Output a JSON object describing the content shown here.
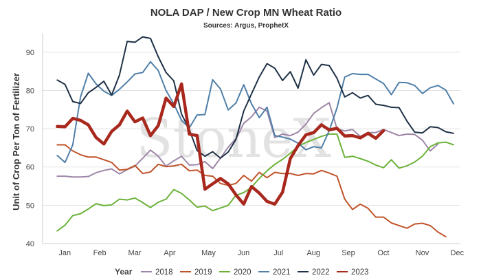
{
  "chart_data": {
    "type": "line",
    "title": "NOLA DAP / New Crop MN Wheat Ratio",
    "subtitle": "Sources: Argus, ProphetX",
    "ylabel": "Unit of Crop Per Ton of Fertilizer",
    "xlabel": "",
    "watermark": "StoneX",
    "ylim": [
      40,
      95
    ],
    "yticks": [
      40,
      50,
      60,
      70,
      80,
      90
    ],
    "xlim": [
      0,
      52
    ],
    "month_ticks": [
      {
        "label": "Jan",
        "x": 2.5
      },
      {
        "label": "Feb",
        "x": 7
      },
      {
        "label": "Mar",
        "x": 11.5
      },
      {
        "label": "Apr",
        "x": 16
      },
      {
        "label": "May",
        "x": 21
      },
      {
        "label": "Jun",
        "x": 25.5
      },
      {
        "label": "Jul",
        "x": 30
      },
      {
        "label": "Aug",
        "x": 34.5
      },
      {
        "label": "Sep",
        "x": 39
      },
      {
        "label": "Oct",
        "x": 43.5
      },
      {
        "label": "Nov",
        "x": 48.5
      },
      {
        "label": "Dec",
        "x": 53
      }
    ],
    "legend_title": "Year",
    "legend_position": "bottom",
    "grid": "horizontal",
    "series": [
      {
        "name": "2018",
        "color": "#9e86a8",
        "width": 2,
        "points": [
          [
            1,
            57.6
          ],
          [
            2,
            57.6
          ],
          [
            3,
            57.4
          ],
          [
            4,
            57.4
          ],
          [
            5,
            57.5
          ],
          [
            6,
            58.5
          ],
          [
            7,
            59.1
          ],
          [
            8,
            59.5
          ],
          [
            9,
            58.2
          ],
          [
            10,
            59.3
          ],
          [
            11,
            60.2
          ],
          [
            12,
            62.3
          ],
          [
            13,
            64.4
          ],
          [
            14,
            62.8
          ],
          [
            15,
            60.2
          ],
          [
            16,
            61.6
          ],
          [
            17,
            62.8
          ],
          [
            18,
            60.5
          ],
          [
            19,
            60.6
          ],
          [
            20,
            61.4
          ],
          [
            21,
            59.6
          ],
          [
            22,
            62.3
          ],
          [
            23,
            65.2
          ],
          [
            24,
            67.4
          ],
          [
            25,
            71.4
          ],
          [
            26,
            73.1
          ],
          [
            27,
            75.6
          ],
          [
            28,
            74.6
          ],
          [
            29,
            67.7
          ],
          [
            30,
            68.6
          ],
          [
            31,
            68.2
          ],
          [
            32,
            69.1
          ],
          [
            33,
            71.2
          ],
          [
            34,
            74
          ],
          [
            35,
            75.5
          ],
          [
            36,
            76.8
          ],
          [
            37,
            70
          ],
          [
            38,
            69.4
          ],
          [
            39,
            69.8
          ],
          [
            40,
            68
          ],
          [
            41,
            69
          ],
          [
            42,
            69
          ],
          [
            43,
            69.8
          ],
          [
            44,
            69
          ],
          [
            45,
            68.2
          ],
          [
            46,
            68.6
          ],
          [
            47,
            68.5
          ],
          [
            48,
            67
          ],
          [
            49,
            64.2
          ],
          [
            50,
            66
          ]
        ]
      },
      {
        "name": "2019",
        "color": "#c0542a",
        "width": 2,
        "points": [
          [
            1,
            65.8
          ],
          [
            2,
            65.8
          ],
          [
            3,
            64.2
          ],
          [
            4,
            63.2
          ],
          [
            5,
            62.6
          ],
          [
            6,
            62.6
          ],
          [
            7,
            61.9
          ],
          [
            8,
            61.2
          ],
          [
            9,
            59.2
          ],
          [
            10,
            59.4
          ],
          [
            11,
            60.4
          ],
          [
            12,
            58.3
          ],
          [
            13,
            58.7
          ],
          [
            14,
            60.7
          ],
          [
            15,
            60.1
          ],
          [
            16,
            60.3
          ],
          [
            17,
            60.7
          ],
          [
            18,
            59
          ],
          [
            19,
            59.2
          ],
          [
            20,
            57.8
          ],
          [
            21,
            57.6
          ],
          [
            22,
            55.7
          ],
          [
            23,
            55.2
          ],
          [
            24,
            55.7
          ],
          [
            25,
            57.8
          ],
          [
            26,
            56.3
          ],
          [
            27,
            58.6
          ],
          [
            28,
            57.2
          ],
          [
            29,
            58.6
          ],
          [
            30,
            58.3
          ],
          [
            31,
            58.3
          ],
          [
            32,
            57.8
          ],
          [
            33,
            58.3
          ],
          [
            34,
            58.2
          ],
          [
            35,
            59.1
          ],
          [
            36,
            58.4
          ],
          [
            37,
            57.6
          ],
          [
            38,
            51.6
          ],
          [
            39,
            48.9
          ],
          [
            40,
            50.3
          ],
          [
            41,
            49.2
          ],
          [
            42,
            46.9
          ],
          [
            43,
            46.9
          ],
          [
            44,
            45.4
          ],
          [
            45,
            44.7
          ],
          [
            46,
            44
          ],
          [
            47,
            45.1
          ],
          [
            48,
            45.3
          ],
          [
            49,
            44.7
          ],
          [
            50,
            43
          ],
          [
            51,
            41.8
          ]
        ]
      },
      {
        "name": "2020",
        "color": "#6cb23a",
        "width": 2,
        "points": [
          [
            1,
            43.3
          ],
          [
            2,
            44.8
          ],
          [
            3,
            47.3
          ],
          [
            4,
            47.8
          ],
          [
            5,
            49
          ],
          [
            6,
            50.4
          ],
          [
            7,
            49.9
          ],
          [
            8,
            50.1
          ],
          [
            9,
            51.6
          ],
          [
            10,
            51.4
          ],
          [
            11,
            51.9
          ],
          [
            12,
            50.7
          ],
          [
            13,
            49.4
          ],
          [
            14,
            50.8
          ],
          [
            15,
            51.6
          ],
          [
            16,
            54.1
          ],
          [
            17,
            53.1
          ],
          [
            18,
            51.4
          ],
          [
            19,
            49.5
          ],
          [
            20,
            49.8
          ],
          [
            21,
            48.6
          ],
          [
            22,
            49.3
          ],
          [
            23,
            50
          ],
          [
            24,
            52.6
          ],
          [
            25,
            53.3
          ],
          [
            26,
            54.7
          ],
          [
            27,
            57
          ],
          [
            28,
            59
          ],
          [
            29,
            60.7
          ],
          [
            30,
            62
          ],
          [
            31,
            63.6
          ],
          [
            32,
            65.4
          ],
          [
            33,
            66.4
          ],
          [
            34,
            67.2
          ],
          [
            35,
            68
          ],
          [
            36,
            68.6
          ],
          [
            37,
            68.6
          ],
          [
            38,
            62.5
          ],
          [
            39,
            62.8
          ],
          [
            40,
            62.2
          ],
          [
            41,
            61.5
          ],
          [
            42,
            60.5
          ],
          [
            43,
            59.8
          ],
          [
            44,
            61.9
          ],
          [
            45,
            59.7
          ],
          [
            46,
            60.3
          ],
          [
            47,
            61.3
          ],
          [
            48,
            62.8
          ],
          [
            49,
            65.3
          ],
          [
            50,
            66.3
          ],
          [
            51,
            66.5
          ],
          [
            52,
            65.8
          ]
        ]
      },
      {
        "name": "2021",
        "color": "#4f7fa8",
        "width": 2,
        "points": [
          [
            1,
            63
          ],
          [
            2,
            61.2
          ],
          [
            3,
            65.8
          ],
          [
            4,
            78.3
          ],
          [
            5,
            84.5
          ],
          [
            6,
            81.7
          ],
          [
            7,
            79.8
          ],
          [
            8,
            78.7
          ],
          [
            9,
            80.3
          ],
          [
            10,
            82.2
          ],
          [
            11,
            84.3
          ],
          [
            12,
            84.7
          ],
          [
            13,
            87.5
          ],
          [
            14,
            85.2
          ],
          [
            15,
            80
          ],
          [
            16,
            76.5
          ],
          [
            17,
            72.2
          ],
          [
            18,
            70.2
          ],
          [
            19,
            73.6
          ],
          [
            20,
            73.7
          ],
          [
            21,
            82.8
          ],
          [
            22,
            80.4
          ],
          [
            23,
            74.9
          ],
          [
            24,
            76.7
          ],
          [
            25,
            81.5
          ],
          [
            26,
            76.5
          ],
          [
            27,
            72.9
          ],
          [
            28,
            75.6
          ],
          [
            29,
            68.2
          ],
          [
            30,
            67.8
          ],
          [
            31,
            67.3
          ],
          [
            32,
            66.2
          ],
          [
            33,
            64.5
          ],
          [
            34,
            65.3
          ],
          [
            35,
            65
          ],
          [
            36,
            69.5
          ],
          [
            37,
            75.4
          ],
          [
            38,
            83.5
          ],
          [
            39,
            84.4
          ],
          [
            40,
            84.2
          ],
          [
            41,
            84.2
          ],
          [
            42,
            83
          ],
          [
            43,
            81.8
          ],
          [
            44,
            78.9
          ],
          [
            45,
            82.1
          ],
          [
            46,
            82
          ],
          [
            47,
            81.3
          ],
          [
            48,
            79.2
          ],
          [
            49,
            80.7
          ],
          [
            50,
            81.3
          ],
          [
            51,
            80.1
          ],
          [
            52,
            76.5
          ]
        ]
      },
      {
        "name": "2022",
        "color": "#1f3146",
        "width": 2,
        "points": [
          [
            1,
            82.7
          ],
          [
            2,
            81.6
          ],
          [
            3,
            77.1
          ],
          [
            4,
            76.6
          ],
          [
            5,
            79.4
          ],
          [
            6,
            80.8
          ],
          [
            7,
            82.4
          ],
          [
            8,
            78.8
          ],
          [
            9,
            84
          ],
          [
            10,
            92.8
          ],
          [
            11,
            92.6
          ],
          [
            12,
            94
          ],
          [
            13,
            93.6
          ],
          [
            14,
            88.8
          ],
          [
            15,
            84.7
          ],
          [
            16,
            82.5
          ],
          [
            17,
            73.8
          ],
          [
            18,
            69.8
          ],
          [
            19,
            64.3
          ],
          [
            20,
            62.8
          ],
          [
            21,
            64
          ],
          [
            22,
            62.3
          ],
          [
            23,
            63.9
          ],
          [
            24,
            67.2
          ],
          [
            25,
            74.6
          ],
          [
            26,
            79.1
          ],
          [
            27,
            83.5
          ],
          [
            28,
            87
          ],
          [
            29,
            85.8
          ],
          [
            30,
            82.6
          ],
          [
            31,
            84.9
          ],
          [
            32,
            80.6
          ],
          [
            33,
            88
          ],
          [
            34,
            84
          ],
          [
            35,
            86.8
          ],
          [
            36,
            86.5
          ],
          [
            37,
            83.2
          ],
          [
            38,
            78.3
          ],
          [
            39,
            79.4
          ],
          [
            40,
            78
          ],
          [
            41,
            78.7
          ],
          [
            42,
            76.4
          ],
          [
            43,
            76.1
          ],
          [
            44,
            75.6
          ],
          [
            45,
            75.5
          ],
          [
            46,
            72
          ],
          [
            47,
            69.1
          ],
          [
            48,
            68.9
          ],
          [
            49,
            70.5
          ],
          [
            50,
            70.3
          ],
          [
            51,
            69.2
          ],
          [
            52,
            68.8
          ]
        ]
      },
      {
        "name": "2023",
        "color": "#a8281e",
        "width": 4.5,
        "points": [
          [
            1,
            70.6
          ],
          [
            2,
            70.5
          ],
          [
            3,
            72.7
          ],
          [
            4,
            72.2
          ],
          [
            5,
            71
          ],
          [
            6,
            67.7
          ],
          [
            7,
            66
          ],
          [
            8,
            69.3
          ],
          [
            9,
            71
          ],
          [
            10,
            74.6
          ],
          [
            11,
            71.8
          ],
          [
            12,
            72.8
          ],
          [
            13,
            68.2
          ],
          [
            14,
            70.8
          ],
          [
            15,
            78
          ],
          [
            16,
            75.8
          ],
          [
            17,
            81.7
          ],
          [
            18,
            68.6
          ],
          [
            19,
            68.2
          ],
          [
            20,
            54.2
          ],
          [
            21,
            55.6
          ],
          [
            22,
            57
          ],
          [
            23,
            55.6
          ],
          [
            24,
            52.7
          ],
          [
            25,
            50.3
          ],
          [
            26,
            54.9
          ],
          [
            27,
            53.2
          ],
          [
            28,
            51
          ],
          [
            29,
            50.3
          ],
          [
            30,
            53.4
          ],
          [
            31,
            62.2
          ],
          [
            32,
            65.6
          ],
          [
            33,
            68.4
          ],
          [
            34,
            69
          ],
          [
            35,
            71
          ],
          [
            36,
            69.7
          ],
          [
            37,
            70.1
          ],
          [
            38,
            68.1
          ],
          [
            39,
            68.2
          ],
          [
            40,
            67.6
          ],
          [
            41,
            68.8
          ],
          [
            42,
            67.5
          ],
          [
            43,
            69.5
          ]
        ]
      }
    ]
  }
}
